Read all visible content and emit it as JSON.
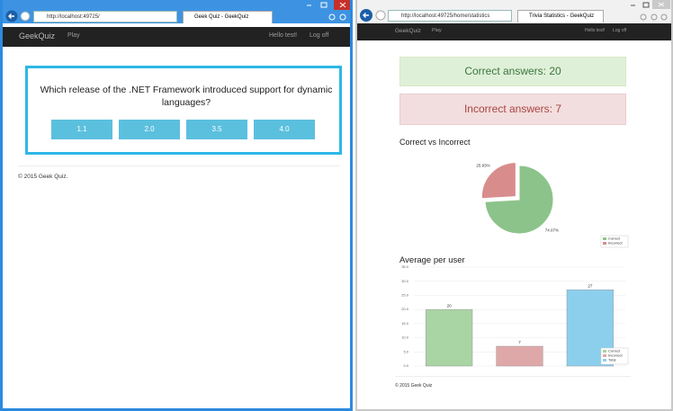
{
  "left_window": {
    "address": "http://localhost:49725/",
    "tab": "Geek Quiz - GeekQuiz",
    "navbar": {
      "brand": "GeekQuiz",
      "play": "Play",
      "user": "Hello test!",
      "logoff": "Log off"
    },
    "question": "Which release of the .NET Framework introduced support for dynamic languages?",
    "options": [
      "1.1",
      "2.0",
      "3.5",
      "4.0"
    ],
    "footer": "© 2015 Geek Quiz."
  },
  "right_window": {
    "address": "http://localhost:49725/home/statistics",
    "tab": "Trivia Statistics - GeekQuiz",
    "navbar": {
      "brand": "GeekQuiz",
      "play": "Play",
      "user": "Hello test!",
      "logoff": "Log off"
    },
    "correct_box": "Correct answers: 20",
    "incorrect_box": "Incorrect answers: 7",
    "footer": "© 2015 Geek Quiz"
  },
  "chart_data": [
    {
      "type": "pie",
      "title": "Correct vs Incorrect",
      "categories": [
        "Correct",
        "Incorrect"
      ],
      "values": [
        74.07,
        25.93
      ],
      "value_labels": [
        "74.07%",
        "25.93%"
      ],
      "colors": [
        "#8cc38a",
        "#d98c8c"
      ],
      "legend": "lower-right"
    },
    {
      "type": "bar",
      "title": "Average per user",
      "categories": [
        null
      ],
      "series": [
        {
          "name": "Correct",
          "color": "#a9d4a3",
          "values": [
            20
          ]
        },
        {
          "name": "Incorrect",
          "color": "#dfa8a8",
          "values": [
            7
          ]
        },
        {
          "name": "Total",
          "color": "#8ccfed",
          "values": [
            27
          ]
        }
      ],
      "ylim": [
        0,
        35
      ],
      "yticks": [
        {
          "value": 0,
          "label": "0.0"
        },
        {
          "value": 5,
          "label": "5.0"
        },
        {
          "value": 10,
          "label": "10.0"
        },
        {
          "value": 15,
          "label": "15.0"
        },
        {
          "value": 20,
          "label": "20.0"
        },
        {
          "value": 25,
          "label": "25.0"
        },
        {
          "value": 30,
          "label": "30.0"
        },
        {
          "value": 35,
          "label": "35.0"
        }
      ],
      "grid": true,
      "legend": "lower-right"
    }
  ]
}
